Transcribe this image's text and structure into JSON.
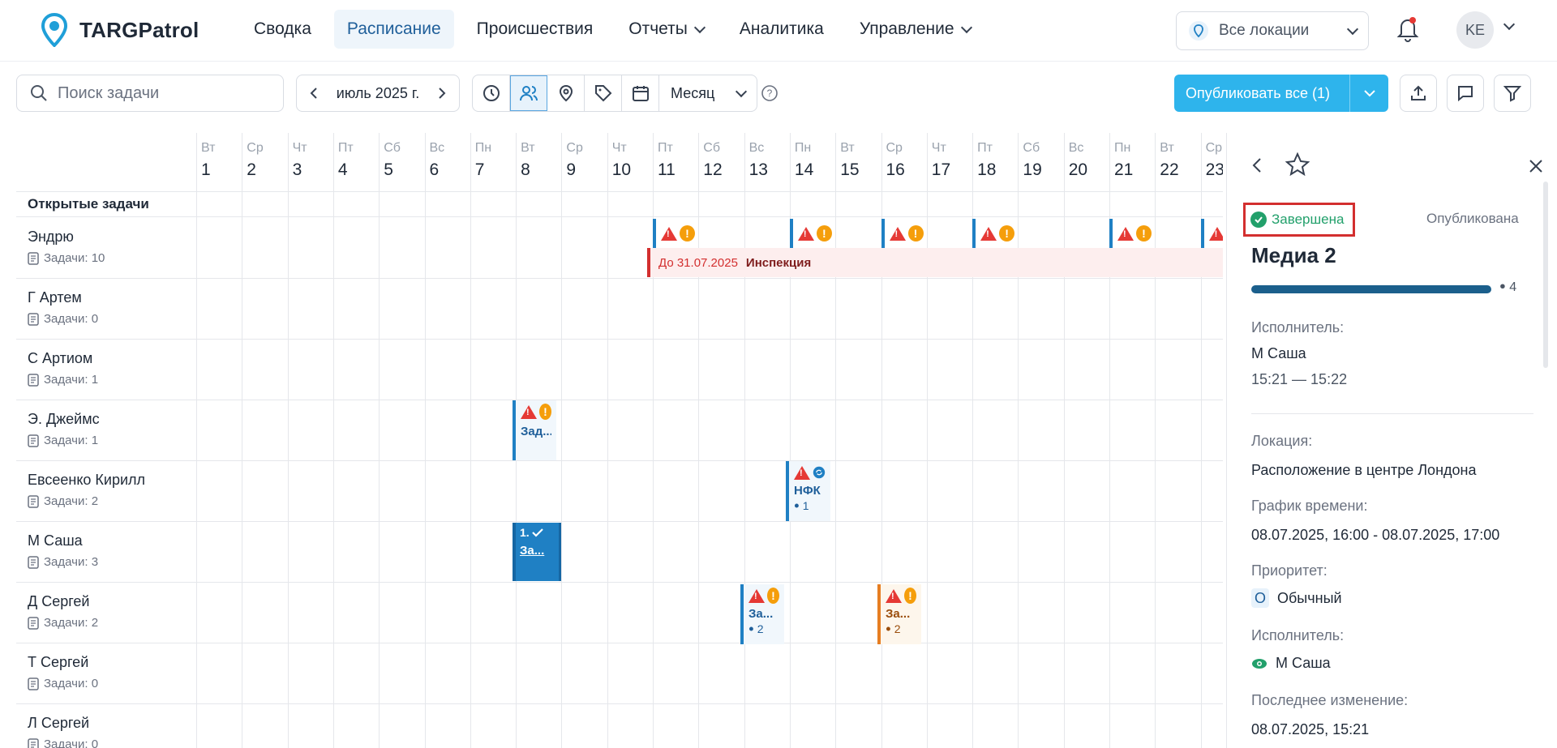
{
  "app": {
    "name": "TARGPatrol",
    "brand_color": "#1f9fd8"
  },
  "nav": {
    "items": [
      {
        "label": "Сводка",
        "active": false,
        "has_menu": false
      },
      {
        "label": "Расписание",
        "active": true,
        "has_menu": false
      },
      {
        "label": "Происшествия",
        "active": false,
        "has_menu": false
      },
      {
        "label": "Отчеты",
        "active": false,
        "has_menu": true
      },
      {
        "label": "Аналитика",
        "active": false,
        "has_menu": false
      },
      {
        "label": "Управление",
        "active": false,
        "has_menu": true
      }
    ]
  },
  "header": {
    "location_label": "Все локации",
    "avatar_initials": "KE"
  },
  "toolbar": {
    "search_placeholder": "Поиск задачи",
    "month": "июль 2025 г.",
    "view_mode": "Месяц",
    "publish_label": "Опубликовать все (1)"
  },
  "calendar": {
    "open_tasks_label": "Открытые задачи",
    "days": [
      {
        "dow": "Вт",
        "n": "1"
      },
      {
        "dow": "Ср",
        "n": "2"
      },
      {
        "dow": "Чт",
        "n": "3"
      },
      {
        "dow": "Пт",
        "n": "4"
      },
      {
        "dow": "Сб",
        "n": "5"
      },
      {
        "dow": "Вс",
        "n": "6"
      },
      {
        "dow": "Пн",
        "n": "7"
      },
      {
        "dow": "Вт",
        "n": "8"
      },
      {
        "dow": "Ср",
        "n": "9"
      },
      {
        "dow": "Чт",
        "n": "10"
      },
      {
        "dow": "Пт",
        "n": "11"
      },
      {
        "dow": "Сб",
        "n": "12"
      },
      {
        "dow": "Вс",
        "n": "13"
      },
      {
        "dow": "Пн",
        "n": "14"
      },
      {
        "dow": "Вт",
        "n": "15"
      },
      {
        "dow": "Ср",
        "n": "16"
      },
      {
        "dow": "Чт",
        "n": "17"
      },
      {
        "dow": "Пт",
        "n": "18"
      },
      {
        "dow": "Сб",
        "n": "19"
      },
      {
        "dow": "Вс",
        "n": "20"
      },
      {
        "dow": "Пн",
        "n": "21"
      },
      {
        "dow": "Вт",
        "n": "22"
      },
      {
        "dow": "Ср",
        "n": "23"
      }
    ],
    "rows": [
      {
        "name": "Эндрю",
        "count": "Задачи: 10"
      },
      {
        "name": "Г Артем",
        "count": "Задачи: 0"
      },
      {
        "name": "С Артиом",
        "count": "Задачи: 1"
      },
      {
        "name": "Э. Джеймс",
        "count": "Задачи: 1"
      },
      {
        "name": "Евсеенко Кирилл",
        "count": "Задачи: 2"
      },
      {
        "name": "М Саша",
        "count": "Задачи: 3"
      },
      {
        "name": "Д Сергей",
        "count": "Задачи: 2"
      },
      {
        "name": "Т Сергей",
        "count": "Задачи: 0"
      },
      {
        "name": "Л Сергей",
        "count": "Задачи: 0"
      }
    ],
    "inspection_bar": {
      "date": "До 31.07.2025",
      "title": "Инспекция"
    },
    "tasks": {
      "james": {
        "title": "Зад..."
      },
      "kirill": {
        "title": "НФК",
        "count": "1"
      },
      "sasha": {
        "num": "1.",
        "title": "За..."
      },
      "sergey1": {
        "title": "За...",
        "count": "2"
      },
      "sergey2": {
        "title": "За...",
        "count": "2"
      }
    }
  },
  "details": {
    "status": "Завершена",
    "publish_state": "Опубликована",
    "title": "Медиа 2",
    "progress": 1.0,
    "progress_count": "4",
    "assignee_label": "Исполнитель:",
    "assignee": "М Саша",
    "time": "15:21 — 15:22",
    "location_label": "Локация:",
    "location": "Расположение в центре Лондона",
    "schedule_label": "График времени:",
    "schedule": "08.07.2025, 16:00 - 08.07.2025, 17:00",
    "priority_label": "Приоритет:",
    "priority_badge": "O",
    "priority": "Обычный",
    "assignee2_label": "Исполнитель:",
    "assignee2": "М Саша",
    "modified_label": "Последнее изменение:",
    "modified": "08.07.2025, 15:21"
  }
}
